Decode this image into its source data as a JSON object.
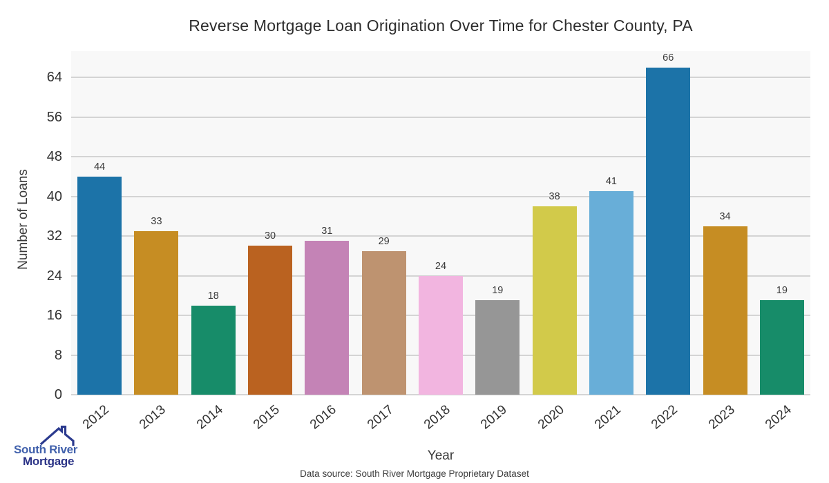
{
  "chart_data": {
    "type": "bar",
    "title": "Reverse Mortgage Loan Origination Over Time for Chester County, PA",
    "xlabel": "Year",
    "ylabel": "Number of Loans",
    "categories": [
      "2012",
      "2013",
      "2014",
      "2015",
      "2016",
      "2017",
      "2018",
      "2019",
      "2020",
      "2021",
      "2022",
      "2023",
      "2024"
    ],
    "values": [
      44,
      33,
      18,
      30,
      31,
      29,
      24,
      19,
      38,
      41,
      66,
      34,
      19
    ],
    "bar_colors": [
      "#1C73A8",
      "#C68D23",
      "#178C69",
      "#BA6220",
      "#C483B6",
      "#BE9370",
      "#F2B5E0",
      "#969696",
      "#D2CA4A",
      "#68AED8",
      "#1C73A8",
      "#C68D23",
      "#178C69"
    ],
    "yticks": [
      0,
      8,
      16,
      24,
      32,
      40,
      48,
      56,
      64
    ],
    "ylim": [
      0,
      69.3
    ],
    "grid": true,
    "legend": "none",
    "value_labels_shown": true,
    "plot_bg": "#F8F8F8",
    "grid_color": "#D4D4D4"
  },
  "footer": {
    "caption": "Data source: South River Mortgage Proprietary Dataset"
  },
  "logo": {
    "line1": "South River",
    "line2": "Mortgage",
    "roof_color": "#2B3A8E",
    "line1_color": "#4161AC",
    "line2_color": "#2C3487"
  }
}
